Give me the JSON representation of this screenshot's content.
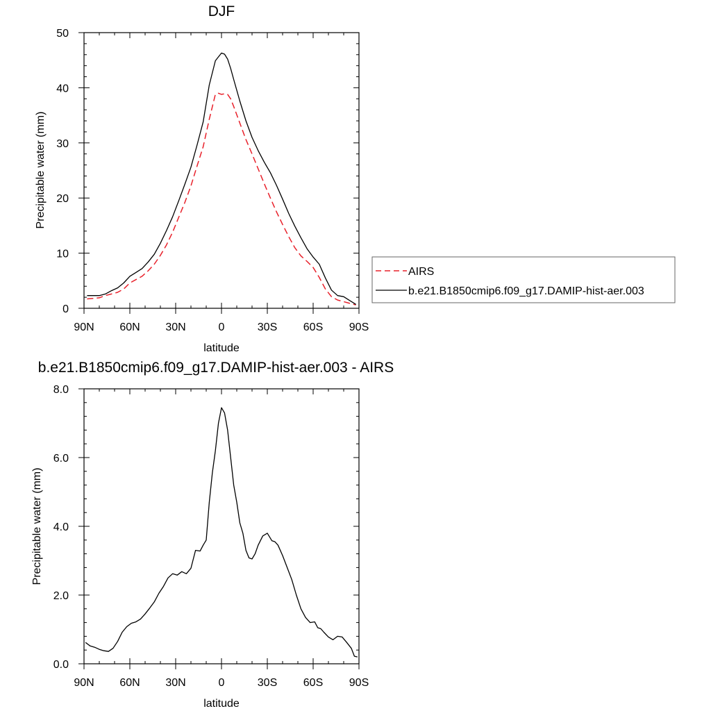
{
  "chart_data": [
    {
      "type": "line",
      "title": "DJF",
      "xlabel": "latitude",
      "ylabel": "Precipitable water (mm)",
      "x_ticks": [
        "90N",
        "60N",
        "30N",
        "0",
        "30S",
        "60S",
        "90S"
      ],
      "y_ticks": [
        "0",
        "10",
        "20",
        "30",
        "40",
        "50"
      ],
      "xlim": [
        90,
        -90
      ],
      "ylim": [
        0,
        50
      ],
      "legend_position": "right",
      "series": [
        {
          "name": "AIRS",
          "color": "#e8202a",
          "dash": "dashed",
          "x": [
            88,
            84,
            80,
            76,
            72,
            68,
            64,
            60,
            56,
            52,
            48,
            44,
            40,
            36,
            32,
            28,
            24,
            20,
            16,
            12,
            8,
            4,
            2,
            0,
            -2,
            -4,
            -6,
            -8,
            -12,
            -16,
            -20,
            -24,
            -28,
            -32,
            -36,
            -40,
            -44,
            -48,
            -52,
            -56,
            -60,
            -64,
            -68,
            -72,
            -76,
            -80,
            -84,
            -88
          ],
          "values": [
            1.7,
            1.8,
            1.9,
            2.3,
            2.6,
            2.9,
            3.5,
            4.6,
            5.2,
            5.8,
            6.8,
            8.0,
            9.6,
            11.5,
            13.8,
            16.5,
            19.2,
            22.2,
            25.8,
            29.3,
            34.3,
            38.8,
            39.0,
            38.8,
            38.9,
            38.8,
            38.0,
            36.6,
            33.6,
            30.6,
            28.0,
            25.3,
            22.6,
            20.0,
            17.5,
            15.2,
            13.0,
            11.0,
            9.5,
            8.5,
            7.4,
            5.6,
            3.5,
            2.1,
            1.5,
            1.2,
            0.9,
            0.6
          ]
        },
        {
          "name": "b.e21.B1850cmip6.f09_g17.DAMIP-hist-aer.003",
          "color": "#000000",
          "dash": "solid",
          "x": [
            88,
            84,
            80,
            76,
            72,
            68,
            64,
            60,
            56,
            52,
            48,
            44,
            40,
            36,
            32,
            28,
            24,
            20,
            16,
            12,
            8,
            4,
            2,
            0,
            -2,
            -4,
            -6,
            -8,
            -12,
            -16,
            -20,
            -24,
            -28,
            -32,
            -36,
            -40,
            -44,
            -48,
            -52,
            -56,
            -60,
            -64,
            -68,
            -72,
            -76,
            -80,
            -84,
            -88
          ],
          "values": [
            2.3,
            2.3,
            2.3,
            2.6,
            3.2,
            3.7,
            4.6,
            5.8,
            6.5,
            7.2,
            8.4,
            9.8,
            11.8,
            14.1,
            16.6,
            19.5,
            22.5,
            25.6,
            29.6,
            33.8,
            40.5,
            44.9,
            45.6,
            46.3,
            46.1,
            45.2,
            43.5,
            41.5,
            37.6,
            34.0,
            31.0,
            28.6,
            26.5,
            24.6,
            22.3,
            19.8,
            17.2,
            14.9,
            12.8,
            10.8,
            9.3,
            8.0,
            5.5,
            3.3,
            2.3,
            2.1,
            1.4,
            0.7
          ]
        }
      ]
    },
    {
      "type": "line",
      "title": "b.e21.B1850cmip6.f09_g17.DAMIP-hist-aer.003 - AIRS",
      "xlabel": "latitude",
      "ylabel": "Precipitable water (mm)",
      "x_ticks": [
        "90N",
        "60N",
        "30N",
        "0",
        "30S",
        "60S",
        "90S"
      ],
      "y_ticks": [
        "0.0",
        "2.0",
        "4.0",
        "6.0",
        "8.0"
      ],
      "xlim": [
        90,
        -90
      ],
      "ylim": [
        0,
        8
      ],
      "series": [
        {
          "color": "#000000",
          "dash": "solid",
          "x": [
            89,
            86,
            83,
            80,
            77,
            74,
            71,
            68,
            65,
            62,
            59,
            56,
            53,
            50,
            47,
            44,
            41,
            38,
            35,
            32,
            29,
            26,
            23,
            20,
            17,
            14,
            12,
            10,
            8,
            6,
            4,
            2,
            0,
            -2,
            -4,
            -6,
            -8,
            -10,
            -12,
            -14,
            -16,
            -18,
            -20,
            -22,
            -24,
            -27,
            -30,
            -33,
            -35,
            -37,
            -40,
            -43,
            -46,
            -49,
            -52,
            -55,
            -58,
            -61,
            -63,
            -65,
            -67,
            -70,
            -73,
            -76,
            -79,
            -82,
            -85,
            -87,
            -89
          ],
          "values": [
            0.62,
            0.52,
            0.48,
            0.42,
            0.38,
            0.36,
            0.45,
            0.65,
            0.92,
            1.08,
            1.18,
            1.22,
            1.3,
            1.45,
            1.62,
            1.8,
            2.05,
            2.25,
            2.5,
            2.62,
            2.58,
            2.68,
            2.62,
            2.78,
            3.3,
            3.28,
            3.45,
            3.6,
            4.7,
            5.55,
            6.2,
            7.0,
            7.45,
            7.3,
            6.8,
            6.0,
            5.2,
            4.7,
            4.1,
            3.8,
            3.3,
            3.08,
            3.05,
            3.2,
            3.45,
            3.72,
            3.8,
            3.58,
            3.55,
            3.45,
            3.15,
            2.8,
            2.45,
            2.0,
            1.6,
            1.35,
            1.2,
            1.22,
            1.05,
            1.02,
            0.92,
            0.78,
            0.7,
            0.8,
            0.78,
            0.62,
            0.45,
            0.22,
            0.2
          ]
        }
      ]
    }
  ]
}
